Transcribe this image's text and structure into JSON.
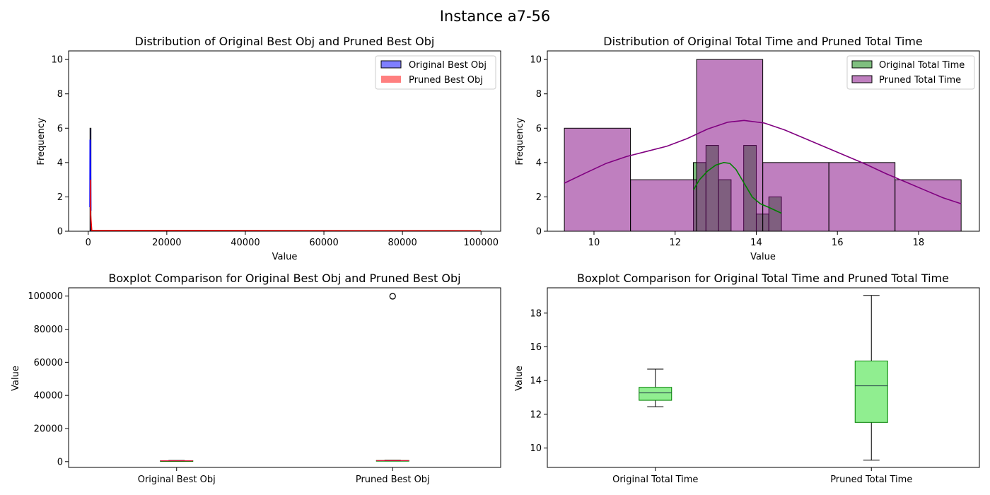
{
  "figure": {
    "suptitle": "Instance a7-56"
  },
  "chart_data": [
    {
      "type": "histogram",
      "title": "Distribution of Original Best Obj and Pruned Best Obj",
      "xlabel": "Value",
      "ylabel": "Frequency",
      "xlim": [
        -5000,
        105000
      ],
      "ylim": [
        0,
        10.5
      ],
      "xticks": [
        0,
        20000,
        40000,
        60000,
        80000,
        100000
      ],
      "xtick_labels": [
        "0",
        "20000",
        "40000",
        "60000",
        "80000",
        "100000"
      ],
      "yticks": [
        0,
        2,
        4,
        6,
        8,
        10
      ],
      "ytick_labels": [
        "0",
        "2",
        "4",
        "6",
        "8",
        "10"
      ],
      "legend_position": "upper right",
      "series": [
        {
          "name": "Original Best Obj",
          "color": "#0000ff",
          "fill_opacity": 0.5,
          "bins": [
            {
              "x0": 450,
              "x1": 700,
              "count": 6
            }
          ],
          "kde": [
            [
              420,
              1.4
            ],
            [
              460,
              5.3
            ],
            [
              560,
              5.3
            ],
            [
              620,
              3.2
            ],
            [
              680,
              1.2
            ]
          ]
        },
        {
          "name": "Pruned Best Obj",
          "color": "#ff0000",
          "fill_opacity": 0.5,
          "bins": [
            {
              "x0": 600,
              "x1": 99800,
              "count": 0.04
            }
          ],
          "kde": [
            [
              560,
              3.0
            ],
            [
              600,
              1.0
            ],
            [
              900,
              0.05
            ],
            [
              100000,
              0.03
            ]
          ]
        }
      ]
    },
    {
      "type": "histogram",
      "title": "Distribution of Original Total Time and Pruned Total Time",
      "xlabel": "Value",
      "ylabel": "Frequency",
      "xlim": [
        8.85,
        19.5
      ],
      "ylim": [
        0,
        10.5
      ],
      "xticks": [
        10,
        12,
        14,
        16,
        18
      ],
      "xtick_labels": [
        "10",
        "12",
        "14",
        "16",
        "18"
      ],
      "yticks": [
        0,
        2,
        4,
        6,
        8,
        10
      ],
      "ytick_labels": [
        "0",
        "2",
        "4",
        "6",
        "8",
        "10"
      ],
      "legend_position": "upper right",
      "series": [
        {
          "name": "Original Total Time",
          "color": "#008000",
          "fill_opacity": 0.5,
          "bins": [
            {
              "x0": 12.45,
              "x1": 12.76,
              "count": 4
            },
            {
              "x0": 12.76,
              "x1": 13.07,
              "count": 5
            },
            {
              "x0": 13.07,
              "x1": 13.38,
              "count": 3
            },
            {
              "x0": 13.38,
              "x1": 13.69,
              "count": 0
            },
            {
              "x0": 13.69,
              "x1": 14.0,
              "count": 5
            },
            {
              "x0": 14.0,
              "x1": 14.31,
              "count": 1
            },
            {
              "x0": 14.31,
              "x1": 14.62,
              "count": 2
            }
          ],
          "kde": [
            [
              12.45,
              2.4
            ],
            [
              12.6,
              3.0
            ],
            [
              12.8,
              3.5
            ],
            [
              13.0,
              3.85
            ],
            [
              13.2,
              4.0
            ],
            [
              13.35,
              3.95
            ],
            [
              13.5,
              3.6
            ],
            [
              13.7,
              2.8
            ],
            [
              13.9,
              2.0
            ],
            [
              14.1,
              1.6
            ],
            [
              14.3,
              1.4
            ],
            [
              14.62,
              1.05
            ]
          ]
        },
        {
          "name": "Pruned Total Time",
          "color": "#800080",
          "fill_opacity": 0.5,
          "bins": [
            {
              "x0": 9.27,
              "x1": 10.9,
              "count": 6
            },
            {
              "x0": 10.9,
              "x1": 12.53,
              "count": 3
            },
            {
              "x0": 12.53,
              "x1": 14.16,
              "count": 10
            },
            {
              "x0": 14.16,
              "x1": 15.79,
              "count": 4
            },
            {
              "x0": 15.79,
              "x1": 17.42,
              "count": 4
            },
            {
              "x0": 17.42,
              "x1": 19.05,
              "count": 3
            }
          ],
          "kde": [
            [
              9.27,
              2.8
            ],
            [
              9.8,
              3.4
            ],
            [
              10.3,
              3.95
            ],
            [
              10.8,
              4.35
            ],
            [
              11.3,
              4.65
            ],
            [
              11.8,
              4.95
            ],
            [
              12.3,
              5.4
            ],
            [
              12.8,
              5.95
            ],
            [
              13.3,
              6.35
            ],
            [
              13.7,
              6.45
            ],
            [
              14.2,
              6.3
            ],
            [
              14.7,
              5.9
            ],
            [
              15.2,
              5.4
            ],
            [
              15.7,
              4.9
            ],
            [
              16.2,
              4.4
            ],
            [
              16.7,
              3.9
            ],
            [
              17.2,
              3.35
            ],
            [
              17.7,
              2.85
            ],
            [
              18.2,
              2.35
            ],
            [
              18.6,
              1.95
            ],
            [
              19.05,
              1.6
            ]
          ]
        }
      ]
    },
    {
      "type": "boxplot",
      "title": "Boxplot Comparison for Original Best Obj and Pruned Best Obj",
      "xlabel": "",
      "ylabel": "Value",
      "ylim": [
        -3500,
        105000
      ],
      "yticks": [
        0,
        20000,
        40000,
        60000,
        80000,
        100000
      ],
      "ytick_labels": [
        "0",
        "20000",
        "40000",
        "60000",
        "80000",
        "100000"
      ],
      "categories": [
        "Original Best Obj",
        "Pruned Best Obj"
      ],
      "box_color": "#90ee90",
      "median_color": "#dc143c",
      "boxes": [
        {
          "whisker_low": 450,
          "q1": 480,
          "median": 520,
          "q3": 560,
          "whisker_high": 700,
          "outliers": []
        },
        {
          "whisker_low": 560,
          "q1": 580,
          "median": 620,
          "q3": 700,
          "whisker_high": 900,
          "outliers": [
            99800,
            100000
          ]
        }
      ]
    },
    {
      "type": "boxplot",
      "title": "Boxplot Comparison for Original Total Time and Pruned Total Time",
      "xlabel": "",
      "ylabel": "Value",
      "ylim": [
        8.85,
        19.5
      ],
      "yticks": [
        10,
        12,
        14,
        16,
        18
      ],
      "ytick_labels": [
        "10",
        "12",
        "14",
        "16",
        "18"
      ],
      "categories": [
        "Original Total Time",
        "Pruned Total Time"
      ],
      "box_color": "#90ee90",
      "median_color": "#2f4f4f",
      "boxes": [
        {
          "whisker_low": 12.45,
          "q1": 12.83,
          "median": 13.27,
          "q3": 13.6,
          "whisker_high": 14.68,
          "outliers": []
        },
        {
          "whisker_low": 9.28,
          "q1": 11.52,
          "median": 13.69,
          "q3": 15.16,
          "whisker_high": 19.05,
          "outliers": []
        }
      ]
    }
  ]
}
